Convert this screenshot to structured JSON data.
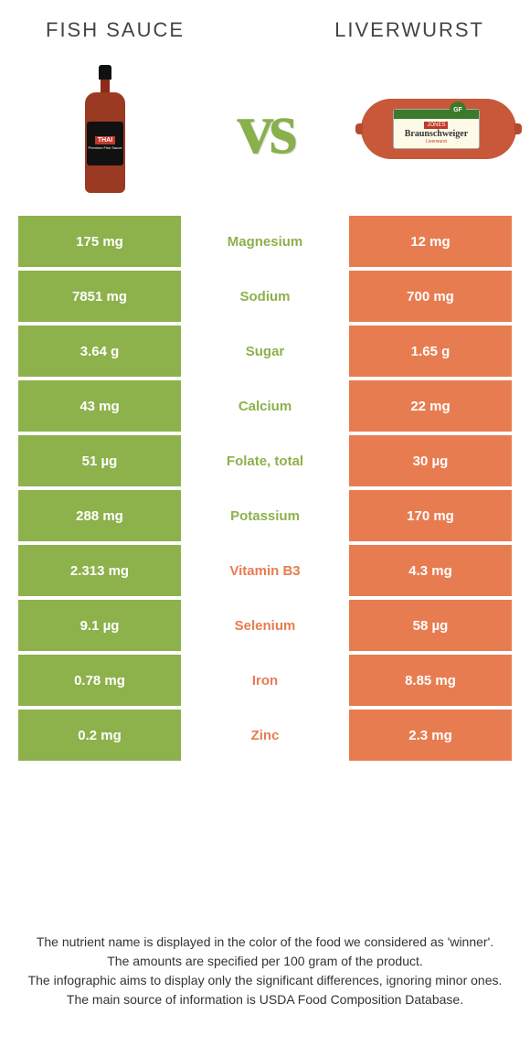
{
  "header": {
    "left_title": "Fish sauce",
    "right_title": "Liverwurst"
  },
  "vs": {
    "text": "vs",
    "bottle_brand": "THAI",
    "bottle_sub": "Premium Fish Sauce",
    "sausage_brand": "JONES",
    "sausage_name": "Braunschweiger",
    "sausage_sub": "Liverwurst",
    "gf_badge": "GF"
  },
  "colors": {
    "green": "#8db14b",
    "orange": "#e87c51"
  },
  "rows": [
    {
      "left": "175 mg",
      "label": "Magnesium",
      "right": "12 mg",
      "winner": "green"
    },
    {
      "left": "7851 mg",
      "label": "Sodium",
      "right": "700 mg",
      "winner": "green"
    },
    {
      "left": "3.64 g",
      "label": "Sugar",
      "right": "1.65 g",
      "winner": "green"
    },
    {
      "left": "43 mg",
      "label": "Calcium",
      "right": "22 mg",
      "winner": "green"
    },
    {
      "left": "51 µg",
      "label": "Folate, total",
      "right": "30 µg",
      "winner": "green"
    },
    {
      "left": "288 mg",
      "label": "Potassium",
      "right": "170 mg",
      "winner": "green"
    },
    {
      "left": "2.313 mg",
      "label": "Vitamin B3",
      "right": "4.3 mg",
      "winner": "orange"
    },
    {
      "left": "9.1 µg",
      "label": "Selenium",
      "right": "58 µg",
      "winner": "orange"
    },
    {
      "left": "0.78 mg",
      "label": "Iron",
      "right": "8.85 mg",
      "winner": "orange"
    },
    {
      "left": "0.2 mg",
      "label": "Zinc",
      "right": "2.3 mg",
      "winner": "orange"
    }
  ],
  "footer": {
    "line1": "The nutrient name is displayed in the color of the food we considered as 'winner'.",
    "line2": "The amounts are specified per 100 gram of the product.",
    "line3": "The infographic aims to display only the significant differences, ignoring minor ones.",
    "line4": "The main source of information is USDA Food Composition Database."
  }
}
